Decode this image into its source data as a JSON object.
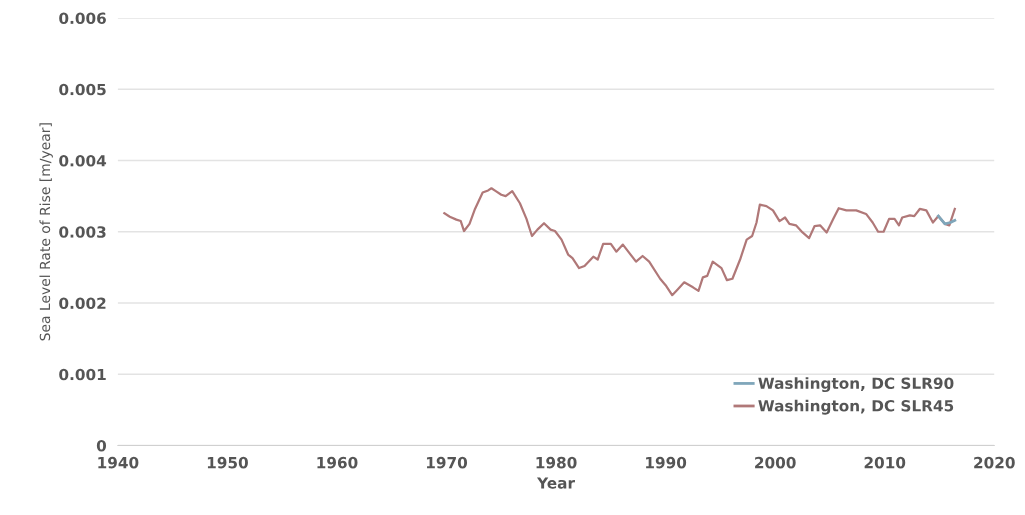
{
  "chart_data": {
    "type": "line",
    "xlabel": "Year",
    "ylabel": "Sea Level Rate of Rise [m/year]",
    "xlim": [
      1940,
      2020
    ],
    "xticks": [
      1940,
      1950,
      1960,
      1970,
      1980,
      1990,
      2000,
      2010,
      2020
    ],
    "ylim": [
      0,
      0.006
    ],
    "yticks": [
      0,
      0.001,
      0.002,
      0.003,
      0.004,
      0.005,
      0.006
    ],
    "grid": "y",
    "legend": "bottom right",
    "line_style": "solid",
    "marker": "none",
    "series": [
      {
        "name": "Washington, DC SLR90",
        "color": "#7fa6ba",
        "x": [
          2014.9,
          2015.5,
          2016.0,
          2016.4
        ],
        "values": [
          0.00322,
          0.00311,
          0.00313,
          0.00316
        ]
      },
      {
        "name": "Washington, DC SLR45",
        "color": "#b07878",
        "x": [
          1969.8,
          1970.3,
          1970.9,
          1971.3,
          1971.6,
          1972.1,
          1972.6,
          1973.3,
          1973.8,
          1974.1,
          1974.5,
          1975.0,
          1975.4,
          1976.0,
          1976.7,
          1977.3,
          1977.8,
          1978.3,
          1978.9,
          1979.5,
          1979.9,
          1980.5,
          1981.1,
          1981.5,
          1982.1,
          1982.6,
          1983.4,
          1983.8,
          1984.3,
          1985.0,
          1985.5,
          1986.1,
          1986.7,
          1987.3,
          1987.9,
          1988.5,
          1989.5,
          1990.0,
          1990.6,
          1991.1,
          1991.7,
          1992.5,
          1993.0,
          1993.4,
          1993.8,
          1994.3,
          1995.1,
          1995.6,
          1996.1,
          1996.8,
          1997.4,
          1997.9,
          1998.3,
          1998.6,
          1999.2,
          1999.8,
          2000.4,
          2000.9,
          2001.3,
          2001.9,
          2002.5,
          2003.1,
          2003.6,
          2004.1,
          2004.7,
          2005.3,
          2005.8,
          2006.5,
          2007.4,
          2008.3,
          2008.9,
          2009.4,
          2009.9,
          2010.4,
          2010.9,
          2011.3,
          2011.6,
          2012.3,
          2012.7,
          2013.2,
          2013.8,
          2014.4,
          2014.9,
          2015.5,
          2015.9,
          2016.4
        ],
        "values": [
          0.00326,
          0.00321,
          0.00317,
          0.00315,
          0.00301,
          0.00311,
          0.00332,
          0.00355,
          0.00358,
          0.00361,
          0.00357,
          0.00352,
          0.0035,
          0.00357,
          0.0034,
          0.00318,
          0.00294,
          0.00303,
          0.00312,
          0.00303,
          0.00301,
          0.00289,
          0.00268,
          0.00263,
          0.00249,
          0.00252,
          0.00265,
          0.00261,
          0.00283,
          0.00283,
          0.00272,
          0.00282,
          0.0027,
          0.00258,
          0.00266,
          0.00258,
          0.00234,
          0.00225,
          0.00211,
          0.00219,
          0.00229,
          0.00222,
          0.00217,
          0.00236,
          0.00238,
          0.00258,
          0.00249,
          0.00232,
          0.00234,
          0.00261,
          0.00289,
          0.00294,
          0.00313,
          0.00338,
          0.00336,
          0.0033,
          0.00315,
          0.0032,
          0.00311,
          0.00309,
          0.00299,
          0.00291,
          0.00308,
          0.00309,
          0.00299,
          0.00318,
          0.00333,
          0.0033,
          0.0033,
          0.00325,
          0.00313,
          0.003,
          0.003,
          0.00318,
          0.00318,
          0.00309,
          0.0032,
          0.00323,
          0.00322,
          0.00332,
          0.0033,
          0.00313,
          0.00322,
          0.00311,
          0.00309,
          0.00332
        ]
      }
    ]
  }
}
